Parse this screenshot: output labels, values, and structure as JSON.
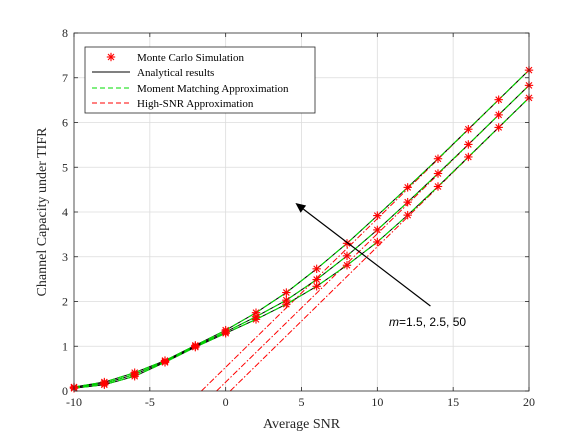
{
  "chart_data": {
    "type": "line",
    "xlabel": "Average SNR",
    "ylabel": "Channel Capacity under TIFR",
    "xlim": [
      -10,
      20
    ],
    "ylim": [
      0,
      8
    ],
    "xticks": [
      -10,
      -5,
      0,
      5,
      10,
      15,
      20
    ],
    "yticks": [
      0,
      1,
      2,
      3,
      4,
      5,
      6,
      7,
      8
    ],
    "grid": true,
    "legend_position": "top-left",
    "legend": [
      {
        "label": "Monte Carlo Simulation",
        "style": "marker",
        "color": "#ff0000"
      },
      {
        "label": "Analytical results",
        "style": "solid",
        "color": "#000000"
      },
      {
        "label": "Moment Matching Approximation",
        "style": "dashed",
        "color": "#00dd00"
      },
      {
        "label": "High-SNR Approximation",
        "style": "dashed",
        "color": "#ff0000"
      }
    ],
    "annotation": {
      "text": "m=1.5, 2.5, 50",
      "italic_part": "m",
      "rest": "=1.5, 2.5, 50",
      "arrow_from": [
        13.5,
        1.9
      ],
      "arrow_to": [
        4.6,
        4.2
      ]
    },
    "x": [
      -10,
      -8,
      -6,
      -4,
      -2,
      0,
      2,
      4,
      6,
      8,
      10,
      12,
      14,
      16,
      18,
      20
    ],
    "series": [
      {
        "m": 1.5,
        "values": [
          0.09,
          0.2,
          0.41,
          0.68,
          1.02,
          1.36,
          1.75,
          2.2,
          2.73,
          3.3,
          3.92,
          4.55,
          5.19,
          5.85,
          6.51,
          7.17
        ]
      },
      {
        "m": 2.5,
        "values": [
          0.08,
          0.17,
          0.37,
          0.66,
          1.0,
          1.32,
          1.66,
          2.03,
          2.49,
          3.02,
          3.6,
          4.22,
          4.86,
          5.51,
          6.17,
          6.83
        ]
      },
      {
        "m": 50,
        "values": [
          0.06,
          0.14,
          0.33,
          0.64,
          0.98,
          1.29,
          1.6,
          1.94,
          2.34,
          2.81,
          3.33,
          3.93,
          4.57,
          5.23,
          5.89,
          6.55
        ]
      }
    ],
    "high_snr": [
      {
        "m": 1.5,
        "x": [
          -1.6,
          20
        ],
        "values": [
          0,
          7.17
        ]
      },
      {
        "m": 2.5,
        "x": [
          -0.6,
          20
        ],
        "values": [
          0,
          6.83
        ]
      },
      {
        "m": 50,
        "x": [
          0.3,
          20
        ],
        "values": [
          0,
          6.55
        ]
      }
    ],
    "colors": {
      "sim": "#ff0000",
      "analytical": "#000000",
      "moment": "#00dd00",
      "highsnr": "#ff0000",
      "grid": "#dcdcdc",
      "axis": "#262626"
    }
  }
}
